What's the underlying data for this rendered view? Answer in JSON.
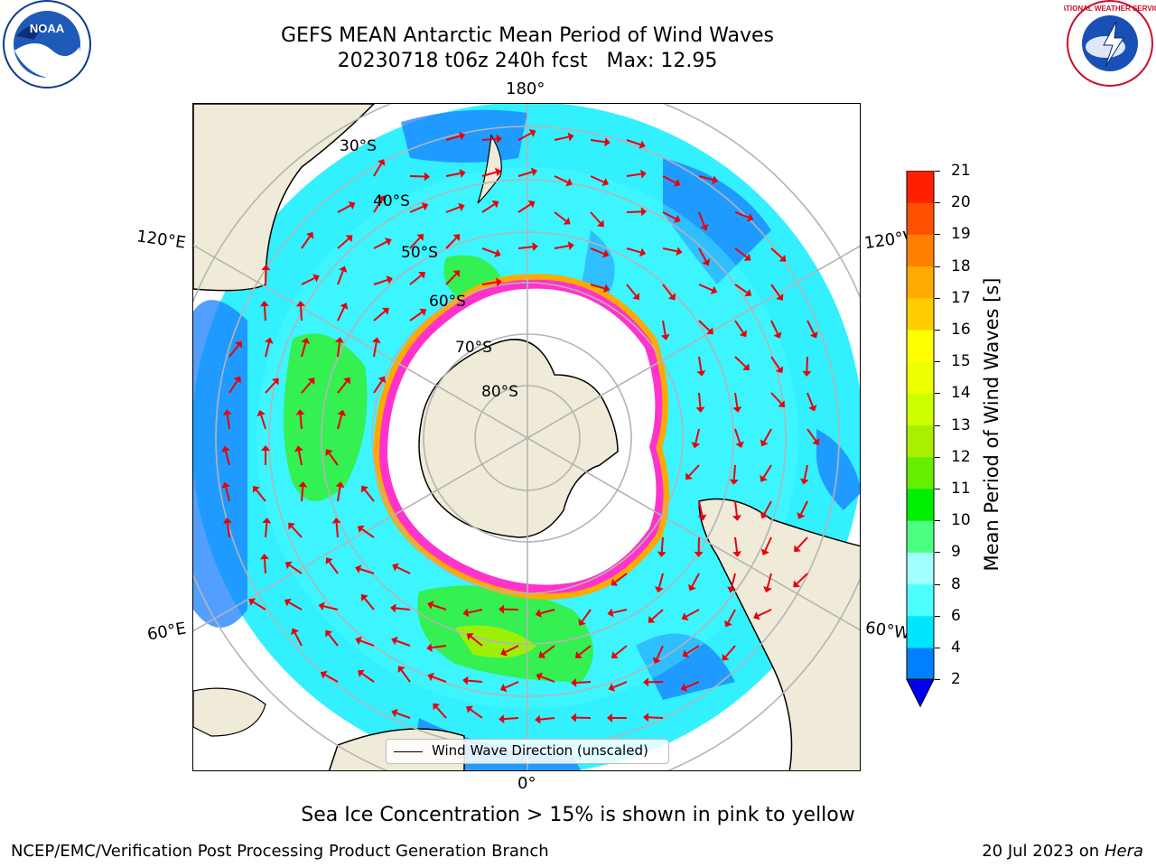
{
  "title": {
    "line1": "GEFS MEAN Antarctic Mean Period of Wind Waves",
    "line2": "20230718 t06z 240h fcst   Max: 12.95"
  },
  "map": {
    "projection": "south-polar-stereographic",
    "lon_labels": {
      "top": "180°",
      "bottom": "0°",
      "left_upper": "120°E",
      "left_lower": "60°E",
      "right_upper": "120°W",
      "right_lower": "60°W"
    },
    "lat_labels": [
      "30°S",
      "40°S",
      "50°S",
      "60°S",
      "70°S",
      "80°S"
    ],
    "colors": {
      "land": "#efebd8",
      "coast": "#000000",
      "grid": "#b4b4b4",
      "arrow": "#e8000b",
      "no_data": "#ffffff"
    },
    "legend": "Wind Wave Direction (unscaled)"
  },
  "colorbar": {
    "label": "Mean Period of Wind Waves [s]",
    "ticks": [
      "2",
      "4",
      "6",
      "8",
      "9",
      "10",
      "11",
      "12",
      "13",
      "14",
      "15",
      "16",
      "17",
      "18",
      "19",
      "20",
      "21"
    ],
    "under_color": "#0000ee",
    "colors": [
      "#0080ff",
      "#00e5ff",
      "#4dffff",
      "#a0ffff",
      "#4dff80",
      "#00ee00",
      "#66ee00",
      "#aaee00",
      "#ccff00",
      "#eeff00",
      "#ffff00",
      "#ffcc00",
      "#ffaa00",
      "#ff8000",
      "#ff5000",
      "#ff2000"
    ]
  },
  "footnote": "Sea Ice Concentration > 15% is shown in pink to yellow",
  "credit": "NCEP/EMC/Verification Post Processing Product Generation Branch",
  "date": {
    "text": "20 Jul 2023 on",
    "machine": "Hera"
  },
  "logos": {
    "left": "NOAA",
    "right": "NATIONAL WEATHER SERVICE"
  }
}
